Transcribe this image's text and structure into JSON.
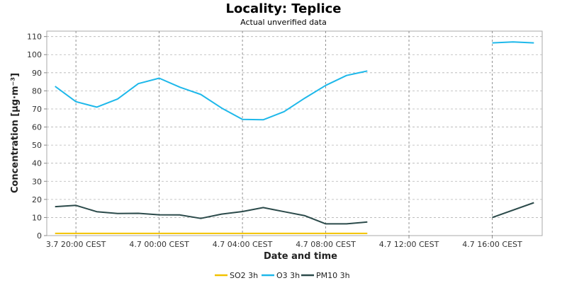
{
  "chart_data": {
    "type": "line",
    "title": "Locality: Teplice",
    "subtitle": "Actual unverified data",
    "xlabel": "Date and time",
    "ylabel": "Concentration [µg·m⁻³]",
    "ylim": [
      0,
      113
    ],
    "yticks": [
      0,
      10,
      20,
      30,
      40,
      50,
      60,
      70,
      80,
      90,
      100,
      110
    ],
    "x_tick_labels": [
      {
        "hour": 0,
        "label": "3.7 20:00 CEST"
      },
      {
        "hour": 4,
        "label": "4.7 00:00 CEST"
      },
      {
        "hour": 8,
        "label": "4.7 04:00 CEST"
      },
      {
        "hour": 12,
        "label": "4.7 08:00 CEST"
      },
      {
        "hour": 16,
        "label": "4.7 12:00 CEST"
      },
      {
        "hour": 20,
        "label": "4.7 16:00 CEST"
      }
    ],
    "x_range_hours": [
      -1.4,
      22.4
    ],
    "grid": true,
    "legend_position": "bottom",
    "series": [
      {
        "name": "SO2 3h",
        "color": "#f2c200",
        "points": [
          [
            -1,
            1.2
          ],
          [
            0,
            1.2
          ],
          [
            1,
            1.2
          ],
          [
            2,
            1.2
          ],
          [
            3,
            1.2
          ],
          [
            4,
            1.2
          ],
          [
            5,
            1.2
          ],
          [
            6,
            1.2
          ],
          [
            7,
            1.2
          ],
          [
            8,
            1.2
          ],
          [
            9,
            1.2
          ],
          [
            10,
            1.2
          ],
          [
            11,
            1.2
          ],
          [
            12,
            1.2
          ],
          [
            13,
            1.2
          ],
          [
            14,
            1.2
          ]
        ]
      },
      {
        "name": "O3 3h",
        "color": "#1eb8ea",
        "points": [
          [
            -1,
            82.5
          ],
          [
            0,
            74
          ],
          [
            1,
            71
          ],
          [
            2,
            75.5
          ],
          [
            3,
            84
          ],
          [
            4,
            87
          ],
          [
            5,
            82
          ],
          [
            6,
            78
          ],
          [
            7,
            70.5
          ],
          [
            8,
            64.2
          ],
          [
            9,
            64
          ],
          [
            10,
            68.5
          ],
          [
            11,
            76
          ],
          [
            12,
            83
          ],
          [
            13,
            88.5
          ],
          [
            14,
            91
          ],
          [
            20,
            106.5
          ],
          [
            21,
            107
          ],
          [
            22,
            106.5
          ]
        ]
      },
      {
        "name": "PM10 3h",
        "color": "#2b4a4a",
        "points": [
          [
            -1,
            16
          ],
          [
            0,
            16.7
          ],
          [
            1,
            13.2
          ],
          [
            2,
            12.2
          ],
          [
            3,
            12.3
          ],
          [
            4,
            11.5
          ],
          [
            5,
            11.4
          ],
          [
            6,
            9.5
          ],
          [
            7,
            11.9
          ],
          [
            8,
            13.3
          ],
          [
            9,
            15.5
          ],
          [
            10,
            13.2
          ],
          [
            11,
            11
          ],
          [
            12,
            6.5
          ],
          [
            13,
            6.5
          ],
          [
            14,
            7.5
          ],
          [
            20,
            10
          ],
          [
            22,
            18.2
          ]
        ]
      }
    ]
  }
}
